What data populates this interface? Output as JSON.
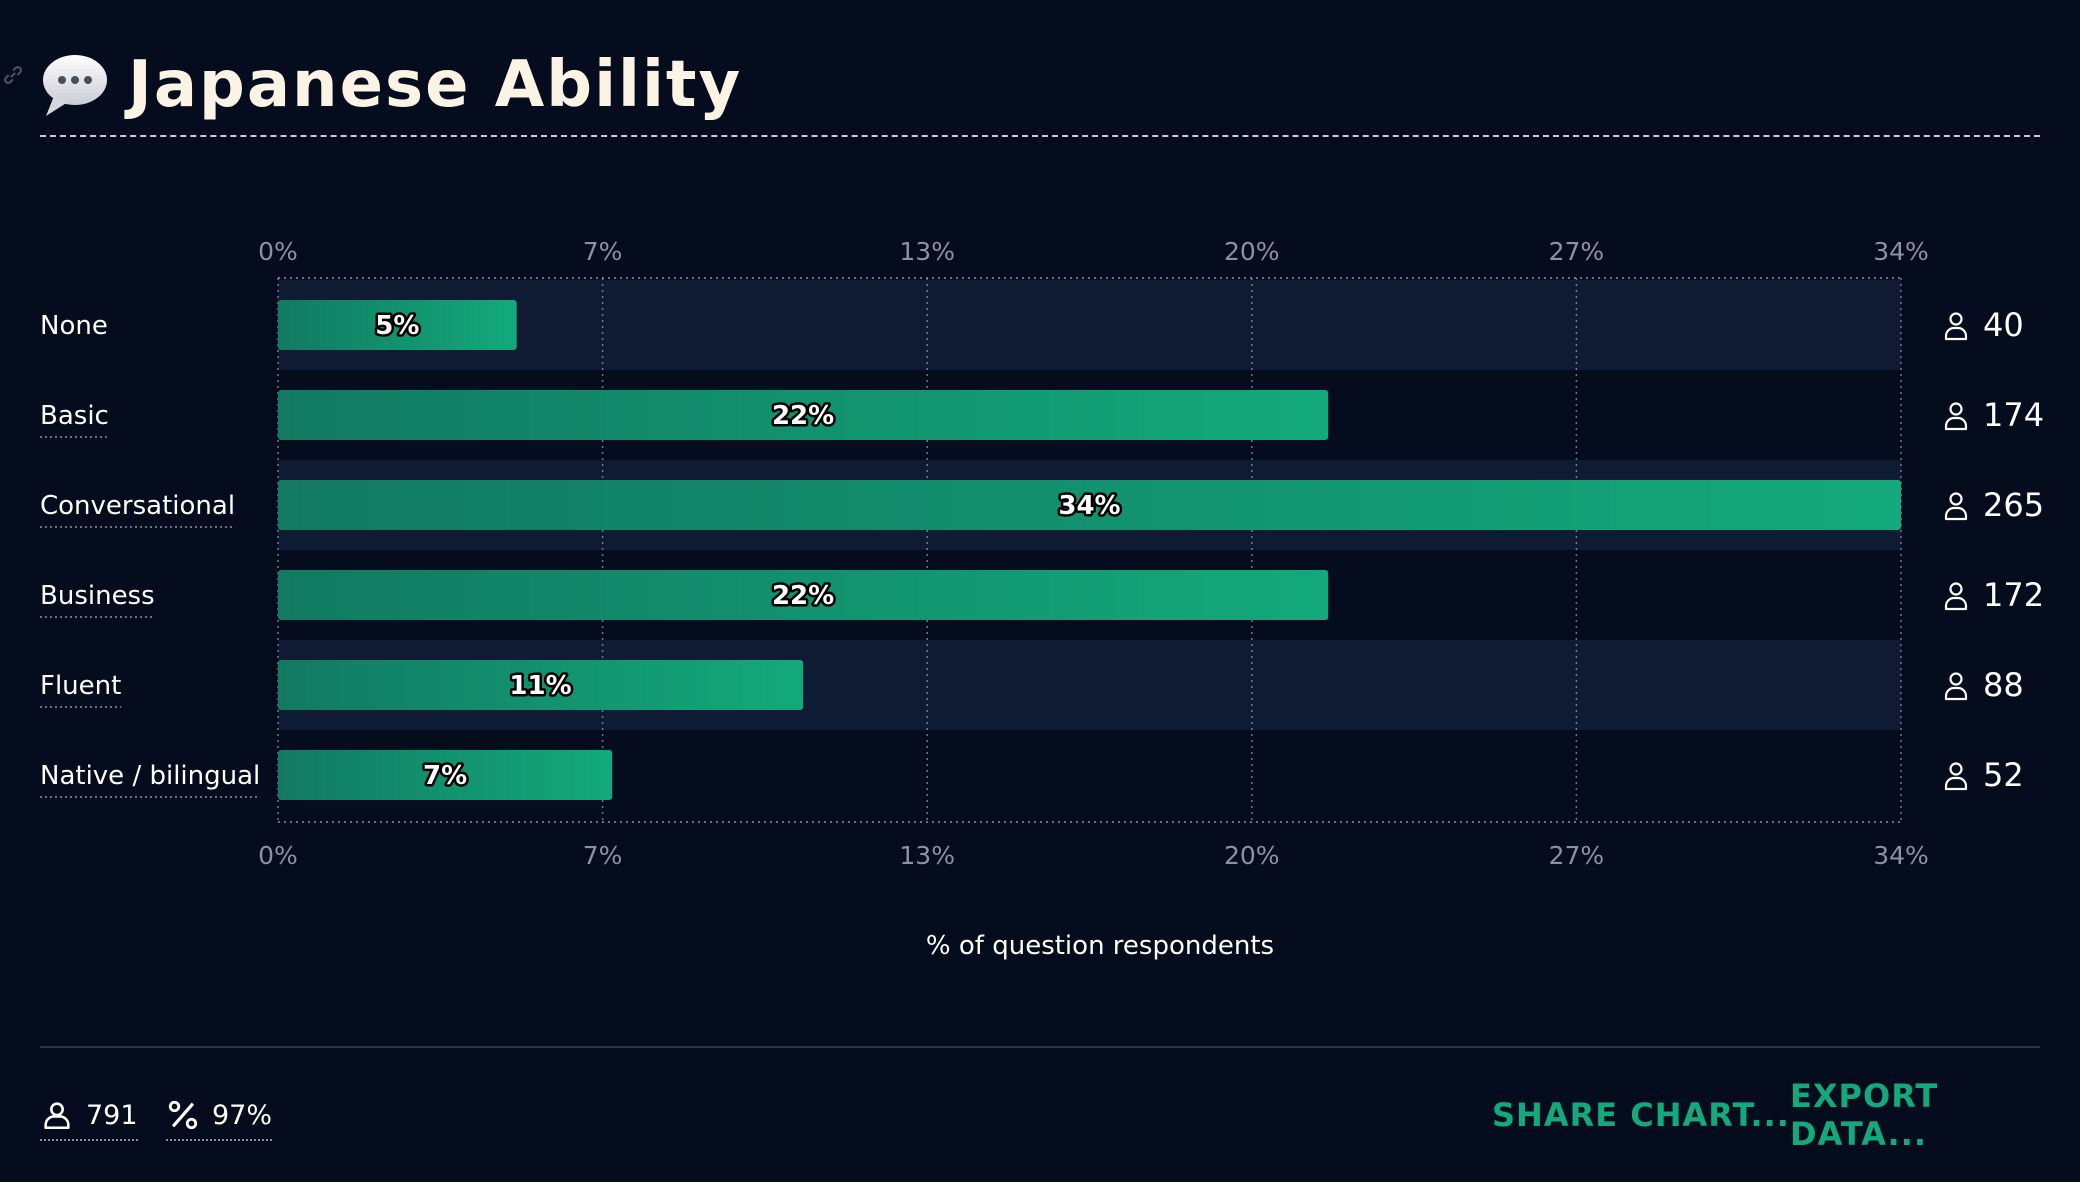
{
  "header": {
    "title": "Japanese Ability"
  },
  "chart_data": {
    "type": "bar",
    "orientation": "horizontal",
    "title": "Japanese Ability",
    "xlabel": "% of question respondents",
    "xlim": [
      0,
      34
    ],
    "ticks": [
      "0%",
      "7%",
      "13%",
      "20%",
      "27%",
      "34%"
    ],
    "categories": [
      "None",
      "Basic",
      "Conversational",
      "Business",
      "Fluent",
      "Native / bilingual"
    ],
    "values": [
      5,
      22,
      34,
      22,
      11,
      7
    ],
    "value_labels": [
      "5%",
      "22%",
      "34%",
      "22%",
      "11%",
      "7%"
    ],
    "respondent_counts": [
      "40",
      "174",
      "265",
      "172",
      "88",
      "52"
    ],
    "bar_color": "#13a97a",
    "grid": true
  },
  "footer": {
    "respondents": "791",
    "completion": "97%",
    "share_label": "SHARE CHART...",
    "export_label": "EXPORT DATA..."
  },
  "colors": {
    "background": "#050c1d",
    "band": "#0e1b33",
    "accent": "#13a97a",
    "title": "#fbf3e4"
  }
}
